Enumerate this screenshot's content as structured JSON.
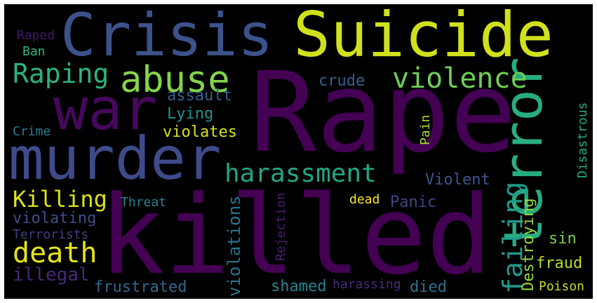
{
  "words": [
    {
      "text": "Rape",
      "color": "#440154"
    },
    {
      "text": "killed",
      "color": "#440154"
    },
    {
      "text": "Crisis",
      "color": "#3b528b"
    },
    {
      "text": "Suicide",
      "color": "#d0e11c"
    },
    {
      "text": "murder",
      "color": "#3e4a89"
    },
    {
      "text": "war",
      "color": "#46085c"
    },
    {
      "text": "terror",
      "color": "#27ad81"
    },
    {
      "text": "abuse",
      "color": "#84d44b"
    },
    {
      "text": "violence",
      "color": "#6ece58"
    },
    {
      "text": "Raping",
      "color": "#2db27d"
    },
    {
      "text": "harassment",
      "color": "#21a685"
    },
    {
      "text": "death",
      "color": "#e5e419"
    },
    {
      "text": "Killing",
      "color": "#dde318"
    },
    {
      "text": "failing",
      "color": "#1f9a8a"
    },
    {
      "text": "Destroying",
      "color": "#95d840"
    },
    {
      "text": "violations",
      "color": "#2c728e"
    },
    {
      "text": "illegal",
      "color": "#482878"
    },
    {
      "text": "violating",
      "color": "#3e4c8a"
    },
    {
      "text": "frustrated",
      "color": "#31688e"
    },
    {
      "text": "shamed",
      "color": "#26828e"
    },
    {
      "text": "assault",
      "color": "#355f8d"
    },
    {
      "text": "Lying",
      "color": "#20928c"
    },
    {
      "text": "violates",
      "color": "#d8e219"
    },
    {
      "text": "crude",
      "color": "#35608d"
    },
    {
      "text": "Violent",
      "color": "#3a548c"
    },
    {
      "text": "Panic",
      "color": "#414487"
    },
    {
      "text": "fraud",
      "color": "#b5de2b"
    },
    {
      "text": "sin",
      "color": "#7ad151"
    },
    {
      "text": "died",
      "color": "#2d708e"
    },
    {
      "text": "harassing",
      "color": "#472d7b"
    },
    {
      "text": "Poison",
      "color": "#c2df23"
    },
    {
      "text": "Disastrous",
      "color": "#22a884"
    },
    {
      "text": "Pain",
      "color": "#addc30"
    },
    {
      "text": "dead",
      "color": "#fde725"
    },
    {
      "text": "Rejection",
      "color": "#481f70"
    },
    {
      "text": "Threat",
      "color": "#25858e"
    },
    {
      "text": "Terrorists",
      "color": "#433e85"
    },
    {
      "text": "Crime",
      "color": "#287c8e"
    },
    {
      "text": "Ban",
      "color": "#2fb47c"
    },
    {
      "text": "Raped",
      "color": "#3f1a62"
    }
  ]
}
